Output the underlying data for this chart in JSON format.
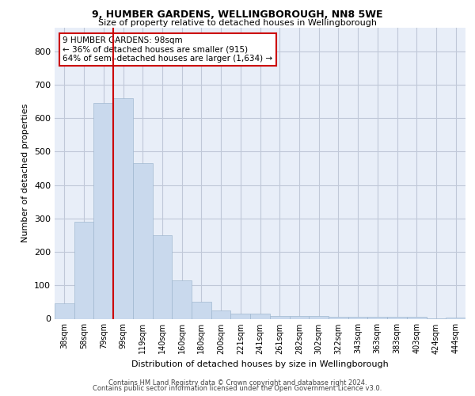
{
  "title1": "9, HUMBER GARDENS, WELLINGBOROUGH, NN8 5WE",
  "title2": "Size of property relative to detached houses in Wellingborough",
  "xlabel": "Distribution of detached houses by size in Wellingborough",
  "ylabel": "Number of detached properties",
  "categories": [
    "38sqm",
    "58sqm",
    "79sqm",
    "99sqm",
    "119sqm",
    "140sqm",
    "160sqm",
    "180sqm",
    "200sqm",
    "221sqm",
    "241sqm",
    "261sqm",
    "282sqm",
    "302sqm",
    "322sqm",
    "343sqm",
    "363sqm",
    "383sqm",
    "403sqm",
    "424sqm",
    "444sqm"
  ],
  "values": [
    45,
    290,
    645,
    660,
    465,
    250,
    115,
    50,
    25,
    15,
    15,
    8,
    8,
    8,
    5,
    5,
    5,
    5,
    5,
    2,
    3
  ],
  "bar_color": "#c9d9ed",
  "bar_edge_color": "#a0b8d0",
  "vline_index": 3,
  "vline_color": "#cc0000",
  "annotation_text": "9 HUMBER GARDENS: 98sqm\n← 36% of detached houses are smaller (915)\n64% of semi-detached houses are larger (1,634) →",
  "annotation_box_color": "white",
  "annotation_box_edge": "#cc0000",
  "ylim": [
    0,
    870
  ],
  "yticks": [
    0,
    100,
    200,
    300,
    400,
    500,
    600,
    700,
    800
  ],
  "grid_color": "#c0c8d8",
  "background_color": "#e8eef8",
  "footer1": "Contains HM Land Registry data © Crown copyright and database right 2024.",
  "footer2": "Contains public sector information licensed under the Open Government Licence v3.0."
}
